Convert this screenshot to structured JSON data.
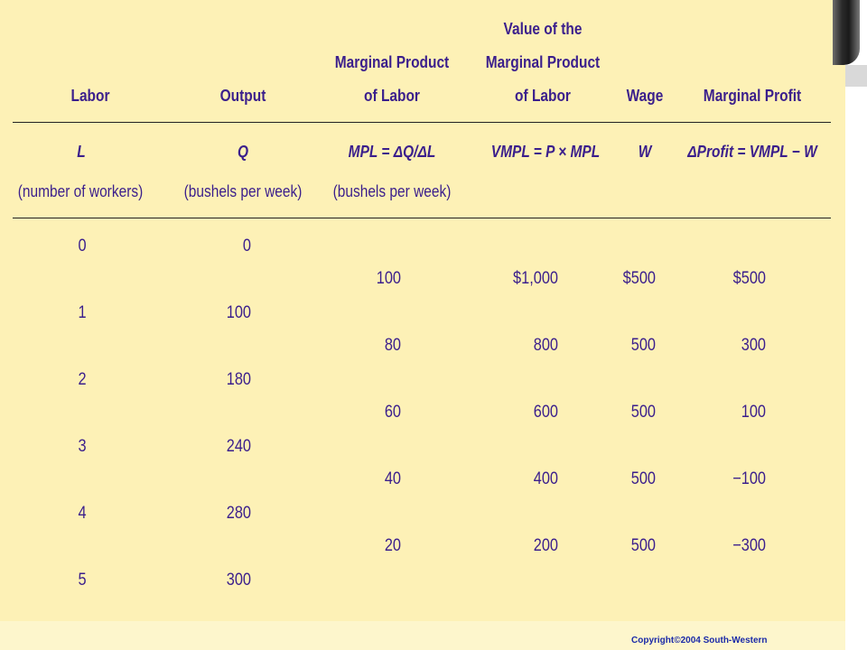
{
  "headers": {
    "labor": [
      "Labor"
    ],
    "output": [
      "Output"
    ],
    "mpl": [
      "Marginal Product",
      "of Labor"
    ],
    "vmpl": [
      "Value of the",
      "Marginal Product",
      "of Labor"
    ],
    "wage": [
      "Wage"
    ],
    "profit": [
      "Marginal Profit"
    ]
  },
  "symbols": {
    "labor": [
      "L",
      "(number of workers)"
    ],
    "output": [
      "Q",
      "(bushels per week)"
    ],
    "mpl": [
      "MPL = ΔQ/ΔL",
      "(bushels per week)"
    ],
    "vmpl": [
      "VMPL = P × MPL"
    ],
    "wage": [
      "W"
    ],
    "profit": [
      "ΔProfit = VMPL − W"
    ]
  },
  "level_rows": [
    {
      "labor": "0",
      "output": "0"
    },
    {
      "labor": "1",
      "output": "100"
    },
    {
      "labor": "2",
      "output": "180"
    },
    {
      "labor": "3",
      "output": "240"
    },
    {
      "labor": "4",
      "output": "280"
    },
    {
      "labor": "5",
      "output": "300"
    }
  ],
  "marginal_rows": [
    {
      "mpl": "100",
      "vmpl": "$1,000",
      "wage": "$500",
      "profit": "$500"
    },
    {
      "mpl": "80",
      "vmpl": "800",
      "wage": "500",
      "profit": "300"
    },
    {
      "mpl": "60",
      "vmpl": "600",
      "wage": "500",
      "profit": "100"
    },
    {
      "mpl": "40",
      "vmpl": "400",
      "wage": "500",
      "profit": "−100"
    },
    {
      "mpl": "20",
      "vmpl": "200",
      "wage": "500",
      "profit": "−300"
    }
  ],
  "copyright": "Copyright©2004  South-Western"
}
